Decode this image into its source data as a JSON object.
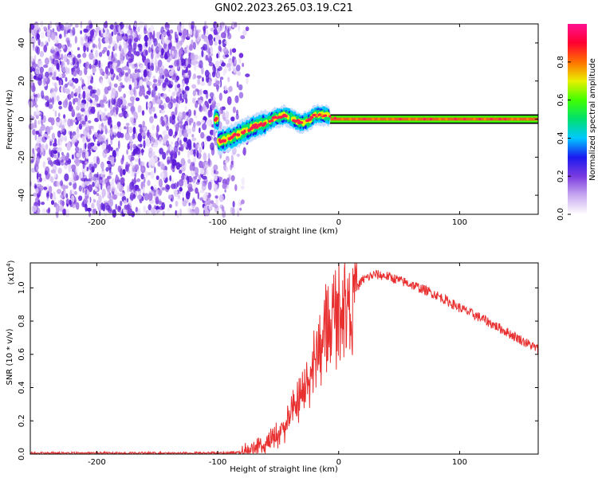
{
  "title": "GN02.2023.265.03.19.C21",
  "chart_data": [
    {
      "type": "heatmap",
      "xlabel": "Height of straight line (km)",
      "ylabel": "Frequency (Hz)",
      "xlim": [
        -255,
        165
      ],
      "ylim": [
        -50,
        50
      ],
      "xticks": [
        -200,
        -100,
        0,
        100
      ],
      "yticks": [
        -40,
        -20,
        0,
        20,
        40
      ],
      "colorbar": {
        "label": "Normalized spectral amplitude",
        "range": [
          0.0,
          1.0
        ],
        "ticks": [
          "0.0",
          "0.2",
          "0.4",
          "0.6",
          "0.8"
        ],
        "colors": [
          "#ffffff",
          "#c8a8f0",
          "#7a3be0",
          "#1a1af0",
          "#00c8ff",
          "#00e070",
          "#40ff00",
          "#e8f000",
          "#ff7000",
          "#ff0030",
          "#ff1090"
        ]
      },
      "noise_region_x": [
        -255,
        -80
      ],
      "ridge": {
        "x": [
          -100,
          -90,
          -80,
          -70,
          -60,
          -55,
          -50,
          -45,
          -40,
          -35,
          -30,
          -25,
          -20,
          -15,
          -10,
          0,
          50,
          100,
          165
        ],
        "y": [
          -12,
          -10,
          -7,
          -4,
          -2,
          0,
          1,
          2,
          1,
          -1,
          -2,
          -1,
          2,
          2,
          2,
          0,
          0,
          0,
          0
        ]
      }
    },
    {
      "type": "line",
      "xlabel": "Height of straight line (km)",
      "ylabel": "SNR (10 * v/v)",
      "ylabel_scale": "(x10",
      "ylabel_scale_exp": "4",
      "ylabel_scale_close": ")",
      "xlim": [
        -255,
        165
      ],
      "ylim": [
        0,
        1.15
      ],
      "xticks": [
        -200,
        -100,
        0,
        100
      ],
      "yticks": [
        0.0,
        0.2,
        0.4,
        0.6,
        0.8,
        1.0
      ],
      "color": "#e83030",
      "series": {
        "x": [
          -255,
          -200,
          -150,
          -100,
          -80,
          -60,
          -50,
          -40,
          -30,
          -20,
          -10,
          0,
          10,
          20,
          30,
          40,
          60,
          80,
          100,
          120,
          140,
          165
        ],
        "y": [
          0.005,
          0.005,
          0.005,
          0.005,
          0.01,
          0.05,
          0.12,
          0.22,
          0.35,
          0.55,
          0.75,
          0.88,
          0.95,
          1.05,
          1.08,
          1.07,
          1.02,
          0.96,
          0.88,
          0.81,
          0.73,
          0.63
        ]
      }
    }
  ]
}
